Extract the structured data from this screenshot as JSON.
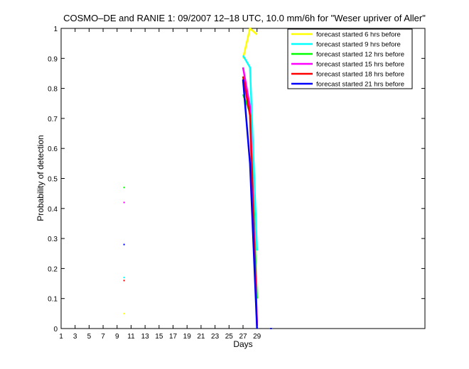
{
  "chart_data": {
    "type": "line",
    "title": "COSMO–DE and RANIE 1: 09/2007 12–18 UTC, 10.0 mm/6h for \"Weser upriver of Aller\"",
    "xlabel": "Days",
    "ylabel": "Probability of detection",
    "xlim": [
      1,
      53
    ],
    "ylim": [
      0,
      1
    ],
    "xticks": [
      1,
      3,
      5,
      7,
      9,
      11,
      13,
      15,
      17,
      19,
      21,
      23,
      25,
      27,
      29
    ],
    "yticks": [
      0,
      0.1,
      0.2,
      0.3,
      0.4,
      0.5,
      0.6,
      0.7,
      0.8,
      0.9,
      1
    ],
    "ytick_labels": [
      "0",
      "0.1",
      "0.2",
      "0.3",
      "0.4",
      "0.5",
      "0.6",
      "0.7",
      "0.8",
      "0.9",
      "1"
    ],
    "legend_position": "top-right",
    "series": [
      {
        "name": "forecast started 6 hrs before",
        "color": "#ffff00",
        "points": [
          [
            10,
            0.05
          ],
          [
            27,
            0.9
          ],
          [
            28,
            1.0
          ],
          [
            29,
            0.98
          ]
        ]
      },
      {
        "name": "forecast started 9 hrs before",
        "color": "#00ffff",
        "points": [
          [
            10,
            0.17
          ],
          [
            27,
            0.91
          ],
          [
            28,
            0.87
          ],
          [
            29,
            0.26
          ]
        ]
      },
      {
        "name": "forecast started 12 hrs before",
        "color": "#00ff00",
        "points": [
          [
            10,
            0.47
          ],
          [
            27,
            0.78
          ],
          [
            28,
            0.72
          ],
          [
            29,
            0.1
          ]
        ]
      },
      {
        "name": "forecast started 15 hrs before",
        "color": "#ff00ff",
        "points": [
          [
            10,
            0.42
          ],
          [
            27,
            0.87
          ],
          [
            28,
            0.74
          ],
          [
            29,
            0.02
          ]
        ]
      },
      {
        "name": "forecast started 18 hrs before",
        "color": "#ff0000",
        "points": [
          [
            10,
            0.16
          ],
          [
            27,
            0.84
          ],
          [
            28,
            0.71
          ],
          [
            29,
            0.01
          ]
        ]
      },
      {
        "name": "forecast started 21 hrs before",
        "color": "#0000ff",
        "points": [
          [
            10,
            0.28
          ],
          [
            27,
            0.83
          ],
          [
            28,
            0.55
          ],
          [
            29,
            0.0
          ]
        ]
      }
    ],
    "extra_points": [
      {
        "x": 31,
        "y": 0.0,
        "color": "#0000ff"
      }
    ]
  }
}
